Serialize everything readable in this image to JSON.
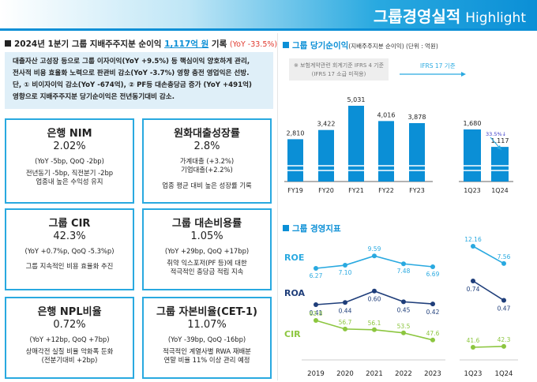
{
  "header": {
    "title": "그룹경영실적",
    "subtitle": "Highlight"
  },
  "headline": {
    "prefix": "2024년 1분기 그룹 지배주주지분 순이익",
    "amount": "1,117억 원",
    "suffix": "기록",
    "change": "(YoY -33.5%)"
  },
  "summary": {
    "lines": [
      "대출자산 고성장 등으로 그룹 이자이익(YoY +9.5%) 등 핵심이익 양호하게 관리,",
      "전사적 비용 효율화 노력으로 판관비 감소(YoY -3.7%) 영향 충전 영업익은 선방.",
      "단, ① 비이자이익 감소(YoY -674억), ② PF등 대손충당금 증가 (YoY +491억)",
      "영향으로 지배주주지분 당기순이익은 전년동기대비 감소."
    ]
  },
  "cards": [
    {
      "title": "은행 NIM",
      "value": "2.02%",
      "sub": "(YoY -5bp, QoQ -2bp)",
      "notes": [
        "전년동기 -5bp, 직전분기 -2bp",
        "업종내 높은 수익성 유지"
      ]
    },
    {
      "title": "원화대출성장률",
      "value": "2.8%",
      "sub": "",
      "notes": [
        "가계대출 (+3.2%)",
        "기업대출(+2.2%)",
        "업종 평균 대비 높은 성장률 기록"
      ]
    },
    {
      "title": "그룹 CIR",
      "value": "42.3%",
      "sub": "(YoY +0.7%p, QoQ -5.3%p)",
      "notes": [
        "그룹 지속적인 비용 효율화 추진"
      ]
    },
    {
      "title": "그룹 대손비용률",
      "value": "1.05%",
      "sub": "(YoY +29bp, QoQ +17bp)",
      "notes": [
        "취약 익스포저(PF 등)에 대한",
        "적극적인 충당금 적립 지속"
      ]
    },
    {
      "title": "은행 NPL비율",
      "value": "0.72%",
      "sub": "(YoY +12bp, QoQ +7bp)",
      "notes": [
        "상매각전 실질 비율 악화폭 둔화",
        "(전분기대비 +2bp)"
      ]
    },
    {
      "title": "그룹 자본비율(CET-1)",
      "value": "11.07%",
      "sub": "(YoY -39bp, QoQ -16bp)",
      "notes": [
        "적극적인 계열사별 RWA 재배분",
        "연말 비율 11% 이상 관리 예정"
      ]
    }
  ],
  "profit_section": {
    "title": "그룹 당기순이익",
    "unit": "(지배주주지분 순이익) (단위 : 억원)",
    "note_line1": "※ 보험계약관련 회계기준 IFRS 4 기준",
    "note_line2": "(IFRS 17 소급 미적용)",
    "ifrs17_label": "IFRS 17 기준",
    "change_label": "33.5%↓"
  },
  "indicator_section": {
    "title": "그룹 경영지표"
  },
  "chart_data": [
    {
      "type": "bar",
      "categories": [
        "FY19",
        "FY20",
        "FY21",
        "FY22",
        "FY23"
      ],
      "values": [
        2810,
        3422,
        5031,
        4016,
        3878
      ],
      "value_labels": [
        "2,810",
        "3,422",
        "5,031",
        "4,016",
        "3,878"
      ],
      "color": "#0b8fd6"
    },
    {
      "type": "bar",
      "categories": [
        "1Q23",
        "1Q24"
      ],
      "values": [
        1680,
        1117
      ],
      "value_labels": [
        "1,680",
        "1,117"
      ],
      "color": "#0b8fd6"
    },
    {
      "type": "line",
      "x": [
        "2019",
        "2020",
        "2021",
        "2022",
        "2023"
      ],
      "series": [
        {
          "name": "ROE",
          "values": [
            6.27,
            7.1,
            9.59,
            7.48,
            6.69
          ],
          "labels": [
            "6.27",
            "7.10",
            "9.59",
            "7.48",
            "6.69"
          ],
          "color": "#29a9e0"
        },
        {
          "name": "ROA",
          "values": [
            0.41,
            0.44,
            0.6,
            0.45,
            0.42
          ],
          "labels": [
            "0.41",
            "0.44",
            "0.60",
            "0.45",
            "0.42"
          ],
          "color": "#1f3e7a"
        },
        {
          "name": "CIR",
          "values": [
            63.8,
            56.7,
            56.1,
            53.5,
            47.6
          ],
          "labels": [
            "63.8",
            "56.7",
            "56.1",
            "53.5",
            "47.6"
          ],
          "color": "#8cc63f"
        }
      ]
    },
    {
      "type": "line",
      "x": [
        "1Q23",
        "1Q24"
      ],
      "series": [
        {
          "name": "ROE",
          "values": [
            12.16,
            7.56
          ],
          "labels": [
            "12.16",
            "7.56"
          ],
          "color": "#29a9e0"
        },
        {
          "name": "ROA",
          "values": [
            0.74,
            0.47
          ],
          "labels": [
            "0.74",
            "0.47"
          ],
          "color": "#1f3e7a"
        },
        {
          "name": "CIR",
          "values": [
            41.6,
            42.3
          ],
          "labels": [
            "41.6",
            "42.3"
          ],
          "color": "#8cc63f"
        }
      ]
    }
  ]
}
